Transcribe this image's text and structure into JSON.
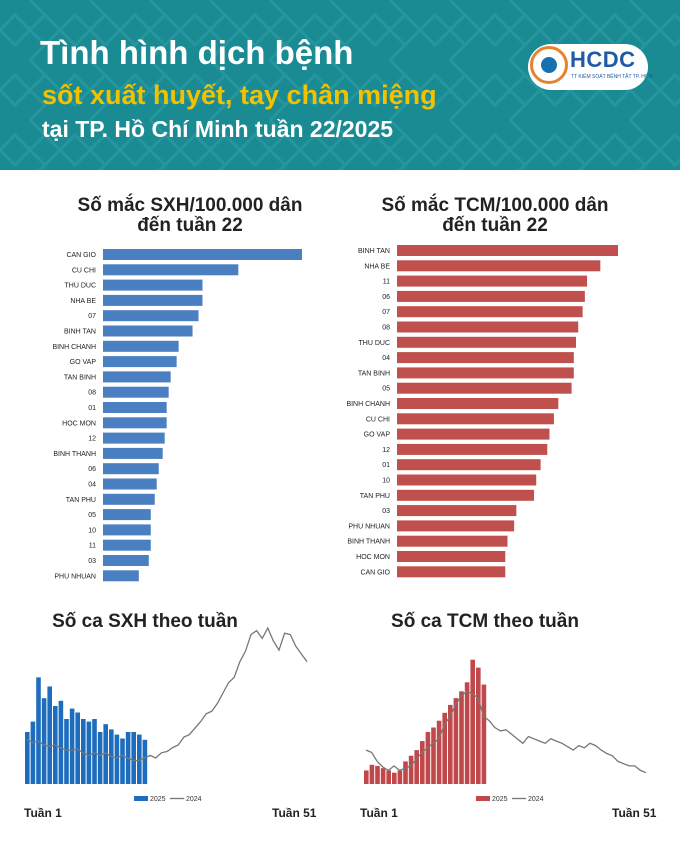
{
  "header": {
    "title": "Tình hình dịch bệnh",
    "subtitle": "sốt xuất huyết, tay chân miệng",
    "subtitle2": "tại TP. Hồ Chí Minh tuần 22/2025",
    "logo_text": "HCDC",
    "logo_small": "TT KIỂM SOÁT BỆNH TẬT TP. HCM"
  },
  "colors": {
    "header_bg": "#1a8a93",
    "sxh": "#4a7fc1",
    "tcm": "#c0504d",
    "sxh_week": "#1d6cbd",
    "tcm_week": "#c0474a",
    "line2024": "#777777"
  },
  "footer": {
    "week_start": "Tuần 1",
    "week_end": "Tuần 51"
  },
  "chart_data": [
    {
      "type": "bar",
      "orientation": "horizontal",
      "title_line1": "Số mắc SXH/100.000 dân",
      "title_line2": "đến tuần 22",
      "categories": [
        "CAN GIO",
        "CU CHI",
        "THU DUC",
        "NHA BE",
        "07",
        "BINH TAN",
        "BINH CHANH",
        "GO VAP",
        "TAN BINH",
        "08",
        "01",
        "HOC MON",
        "12",
        "BINH THANH",
        "06",
        "04",
        "TAN PHU",
        "05",
        "10",
        "11",
        "03",
        "PHU NHUAN"
      ],
      "values": [
        100,
        68,
        50,
        50,
        48,
        45,
        38,
        37,
        34,
        33,
        32,
        32,
        31,
        30,
        28,
        27,
        26,
        24,
        24,
        24,
        23,
        18
      ]
    },
    {
      "type": "bar",
      "orientation": "horizontal",
      "title_line1": "Số mắc TCM/100.000 dân",
      "title_line2": "đến tuần 22",
      "categories": [
        "BINH TAN",
        "NHA BE",
        "11",
        "06",
        "07",
        "08",
        "THU DUC",
        "04",
        "TAN BINH",
        "05",
        "BINH CHANH",
        "CU CHI",
        "GO VAP",
        "12",
        "01",
        "10",
        "TAN PHU",
        "03",
        "PHU NHUAN",
        "BINH THANH",
        "HOC MON",
        "CAN GIO"
      ],
      "values": [
        100,
        92,
        86,
        85,
        84,
        82,
        81,
        80,
        80,
        79,
        73,
        71,
        69,
        68,
        65,
        63,
        62,
        54,
        53,
        50,
        49,
        49
      ]
    },
    {
      "type": "bar+line",
      "title": "Số ca SXH theo tuần",
      "legend": [
        "2025",
        "2024"
      ],
      "series": [
        {
          "name": "2025",
          "values": [
            40,
            48,
            82,
            66,
            75,
            60,
            64,
            50,
            58,
            55,
            50,
            48,
            50,
            40,
            46,
            42,
            38,
            35,
            40,
            40,
            38,
            34
          ]
        },
        {
          "name": "2024",
          "values": [
            34,
            32,
            33,
            30,
            29,
            30,
            28,
            26,
            26,
            27,
            24,
            22,
            24,
            22,
            24,
            21,
            20,
            22,
            20,
            18,
            18,
            20,
            22,
            20,
            24,
            25,
            28,
            30,
            36,
            38,
            43,
            48,
            54,
            56,
            62,
            70,
            78,
            82,
            94,
            102,
            115,
            118,
            112,
            120,
            110,
            103,
            116,
            115,
            106,
            100,
            94
          ]
        }
      ]
    },
    {
      "type": "bar+line",
      "title": "Số ca TCM theo tuần",
      "legend": [
        "2025",
        "2024"
      ],
      "series": [
        {
          "name": "2025",
          "values": [
            12,
            17,
            16,
            14,
            12,
            10,
            12,
            20,
            25,
            30,
            38,
            46,
            50,
            56,
            63,
            70,
            76,
            82,
            90,
            110,
            103,
            88
          ]
        },
        {
          "name": "2024",
          "values": [
            30,
            28,
            20,
            15,
            12,
            16,
            12,
            14,
            16,
            22,
            28,
            32,
            36,
            40,
            52,
            60,
            70,
            78,
            82,
            80,
            76,
            60,
            56,
            50,
            47,
            48,
            44,
            40,
            36,
            42,
            40,
            38,
            36,
            40,
            38,
            36,
            33,
            30,
            34,
            32,
            36,
            34,
            30,
            27,
            25,
            20,
            18,
            16,
            16,
            12,
            10
          ]
        }
      ]
    }
  ]
}
